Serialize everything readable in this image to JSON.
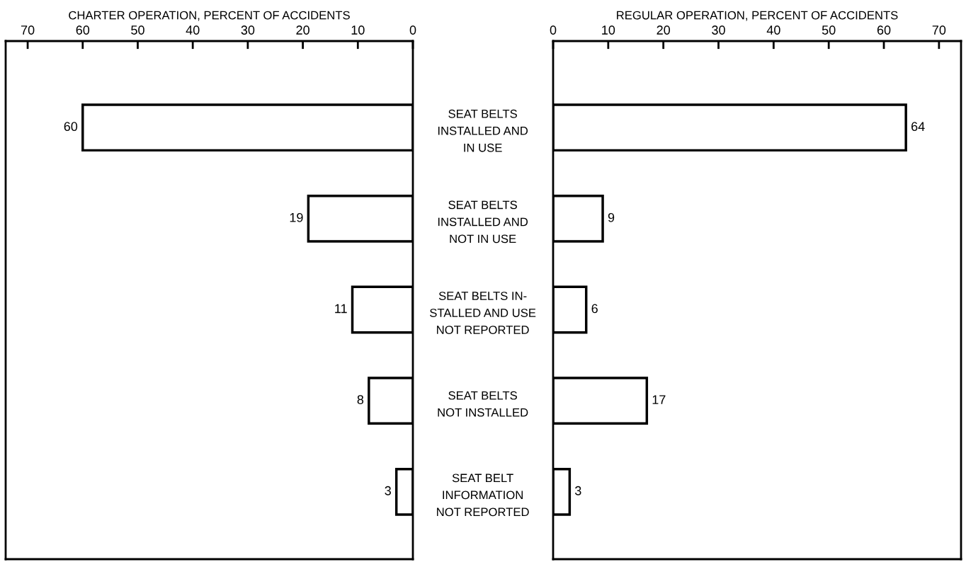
{
  "chart_data": [
    {
      "type": "bar",
      "orientation": "horizontal",
      "xlabel": "CHARTER OPERATION, PERCENT OF ACCIDENTS",
      "categories": [
        "SEAT BELTS\nINSTALLED AND\nIN USE",
        "SEAT BELTS\nINSTALLED AND\nNOT IN USE",
        "SEAT BELTS IN-\nSTALLED AND USE\nNOT REPORTED",
        "SEAT BELTS\nNOT INSTALLED",
        "SEAT BELT\nINFORMATION\nNOT REPORTED"
      ],
      "values": [
        60,
        19,
        11,
        8,
        3
      ],
      "color": "#000000",
      "xlim": [
        74,
        0
      ],
      "xticks": [
        70,
        60,
        50,
        40,
        30,
        20,
        10,
        0
      ],
      "data_labels": true,
      "grid": false,
      "legend": false
    },
    {
      "type": "bar",
      "orientation": "horizontal",
      "xlabel": "REGULAR OPERATION, PERCENT OF ACCIDENTS",
      "categories": [
        null,
        null,
        null,
        null,
        null
      ],
      "values": [
        64,
        9,
        6,
        17,
        3
      ],
      "color": "#000000",
      "xlim": [
        0,
        74
      ],
      "xticks": [
        0,
        10,
        20,
        30,
        40,
        50,
        60,
        70
      ],
      "data_labels": true,
      "tick_labels": "x",
      "grid": false,
      "legend": false
    }
  ]
}
